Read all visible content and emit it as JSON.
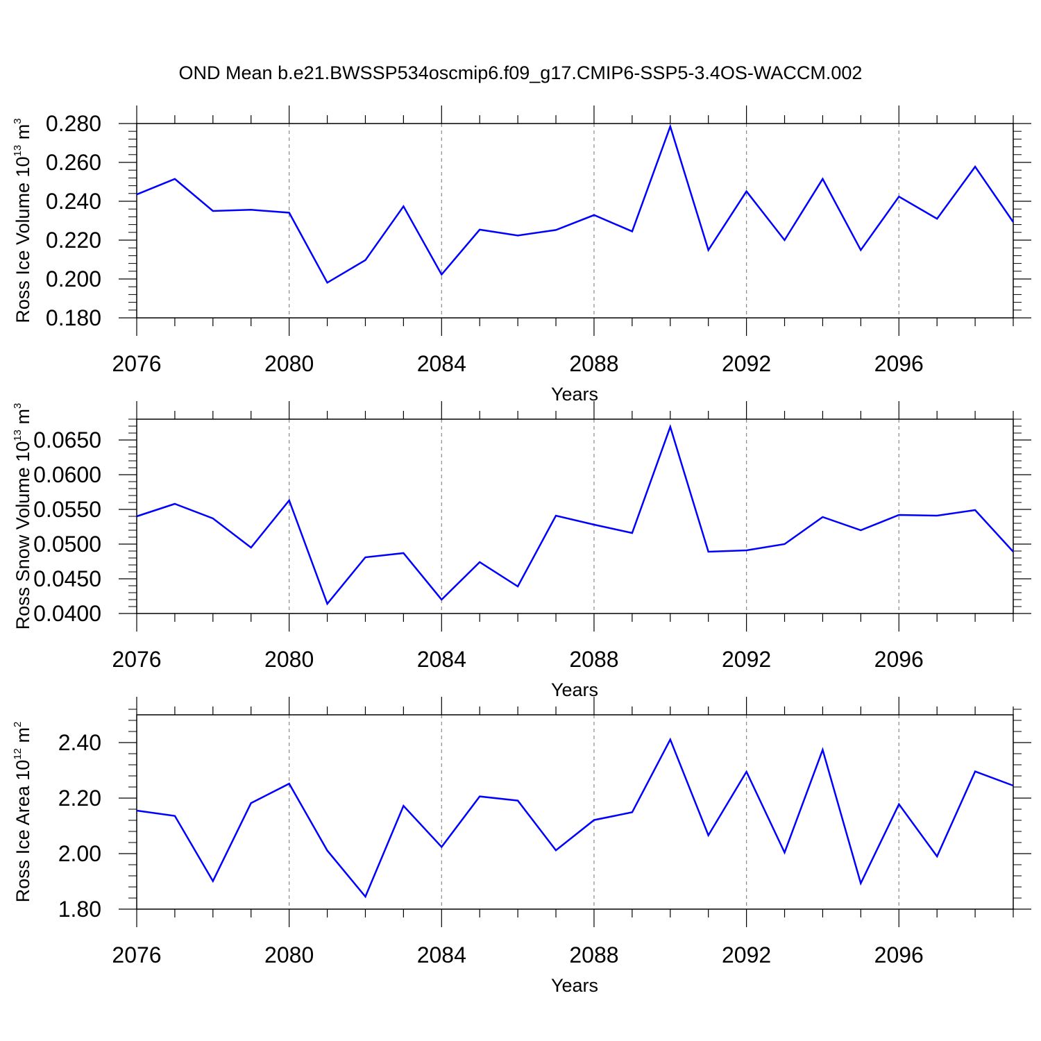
{
  "title": "OND Mean b.e21.BWSSP534oscmip6.f09_g17.CMIP6-SSP5-3.4OS-WACCM.002",
  "colors": {
    "line": "#0000ff",
    "axis": "#000000",
    "grid": "#888888"
  },
  "chart_data": [
    {
      "type": "line",
      "name": "ross-ice-volume",
      "ylabel": "Ross Ice Volume 10",
      "ylabel_exp": "13",
      "ylabel_unit": " m",
      "ylabel_unit_exp": "3",
      "xlabel": "Years",
      "xlim": [
        2076,
        2099
      ],
      "ylim": [
        0.18,
        0.28
      ],
      "xticks": [
        2076,
        2080,
        2084,
        2088,
        2092,
        2096
      ],
      "xtick_labels": [
        "2076",
        "2080",
        "2084",
        "2088",
        "2092",
        "2096"
      ],
      "yticks": [
        0.18,
        0.2,
        0.22,
        0.24,
        0.26,
        0.28
      ],
      "ytick_labels": [
        "0.180",
        "0.200",
        "0.220",
        "0.240",
        "0.260",
        "0.280"
      ],
      "y_minor_step": 0.004,
      "x": [
        2076,
        2077,
        2078,
        2079,
        2080,
        2081,
        2082,
        2083,
        2084,
        2085,
        2086,
        2087,
        2088,
        2089,
        2090,
        2091,
        2092,
        2093,
        2094,
        2095,
        2096,
        2097,
        2098,
        2099
      ],
      "values": [
        0.2435,
        0.2515,
        0.235,
        0.2356,
        0.2341,
        0.1981,
        0.2097,
        0.2374,
        0.2023,
        0.2254,
        0.2224,
        0.2252,
        0.2329,
        0.2245,
        0.2785,
        0.2149,
        0.2451,
        0.22,
        0.2515,
        0.2149,
        0.2424,
        0.231,
        0.2578,
        0.2293
      ]
    },
    {
      "type": "line",
      "name": "ross-snow-volume",
      "ylabel": "Ross Snow Volume 10",
      "ylabel_exp": "13",
      "ylabel_unit": " m",
      "ylabel_unit_exp": "3",
      "xlabel": "Years",
      "xlim": [
        2076,
        2099
      ],
      "ylim": [
        0.04,
        0.068
      ],
      "xticks": [
        2076,
        2080,
        2084,
        2088,
        2092,
        2096
      ],
      "xtick_labels": [
        "2076",
        "2080",
        "2084",
        "2088",
        "2092",
        "2096"
      ],
      "yticks": [
        0.04,
        0.045,
        0.05,
        0.055,
        0.06,
        0.065
      ],
      "ytick_labels": [
        "0.0400",
        "0.0450",
        "0.0500",
        "0.0550",
        "0.0600",
        "0.0650"
      ],
      "y_minor_step": 0.001,
      "x": [
        2076,
        2077,
        2078,
        2079,
        2080,
        2081,
        2082,
        2083,
        2084,
        2085,
        2086,
        2087,
        2088,
        2089,
        2090,
        2091,
        2092,
        2093,
        2094,
        2095,
        2096,
        2097,
        2098,
        2099
      ],
      "values": [
        0.054,
        0.0558,
        0.0537,
        0.0495,
        0.0563,
        0.0414,
        0.0481,
        0.0487,
        0.042,
        0.0474,
        0.0439,
        0.0541,
        0.0528,
        0.0516,
        0.0669,
        0.0489,
        0.0491,
        0.05,
        0.0539,
        0.052,
        0.0542,
        0.0541,
        0.0549,
        0.0489
      ]
    },
    {
      "type": "line",
      "name": "ross-ice-area",
      "ylabel": "Ross Ice Area 10",
      "ylabel_exp": "12",
      "ylabel_unit": " m",
      "ylabel_unit_exp": "2",
      "xlabel": "Years",
      "xlim": [
        2076,
        2099
      ],
      "ylim": [
        1.8,
        2.5
      ],
      "xticks": [
        2076,
        2080,
        2084,
        2088,
        2092,
        2096
      ],
      "xtick_labels": [
        "2076",
        "2080",
        "2084",
        "2088",
        "2092",
        "2096"
      ],
      "yticks": [
        1.8,
        2.0,
        2.2,
        2.4
      ],
      "ytick_labels": [
        "1.80",
        "2.00",
        "2.20",
        "2.40"
      ],
      "y_minor_step": 0.04,
      "x": [
        2076,
        2077,
        2078,
        2079,
        2080,
        2081,
        2082,
        2083,
        2084,
        2085,
        2086,
        2087,
        2088,
        2089,
        2090,
        2091,
        2092,
        2093,
        2094,
        2095,
        2096,
        2097,
        2098,
        2099
      ],
      "values": [
        2.155,
        2.136,
        1.901,
        2.182,
        2.252,
        2.011,
        1.845,
        2.172,
        2.024,
        2.206,
        2.191,
        2.012,
        2.121,
        2.149,
        2.411,
        2.066,
        2.295,
        2.004,
        2.374,
        1.893,
        2.178,
        1.99,
        2.296,
        2.245
      ]
    }
  ]
}
